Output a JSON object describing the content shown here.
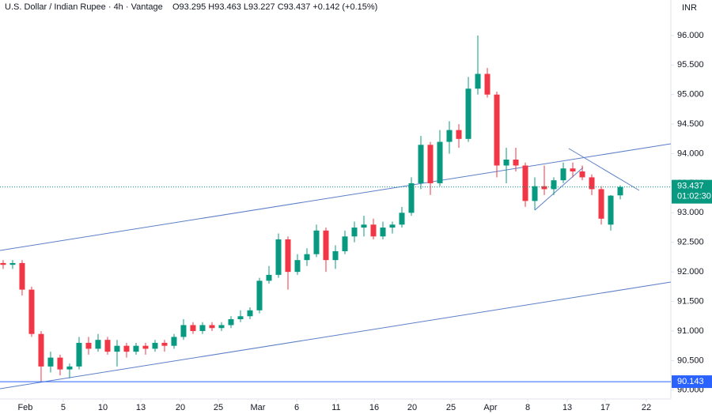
{
  "chart_data": {
    "type": "candlestick",
    "title": "U.S. Dollar / Indian Rupee · 4h · Vantage",
    "subtitle": "O93.295 H93.463 L93.227 C93.437 +0.142 (+0.15%)",
    "currency": "INR",
    "countdown": "01:02:30",
    "up_color": "#089981",
    "down_color": "#f23645",
    "grid": false,
    "series": [
      {
        "open": [
          92.15,
          92.12,
          92.15,
          91.7,
          90.95,
          90.4,
          90.55,
          90.35,
          90.4,
          90.8,
          90.7,
          90.85,
          90.65,
          90.75,
          90.65,
          90.75,
          90.7,
          90.8,
          90.75,
          90.9,
          91.1,
          91.0,
          91.1,
          91.05,
          91.1,
          91.2,
          91.25,
          91.35,
          91.85,
          91.95,
          92.55,
          92.0,
          92.2,
          92.3,
          92.7,
          92.2,
          92.35,
          92.6,
          92.75,
          92.8,
          92.6,
          92.75,
          92.8,
          93.0,
          93.5,
          94.15,
          93.5,
          94.2,
          94.4,
          94.25,
          95.1,
          95.35,
          95.0,
          93.8,
          93.9,
          93.8,
          93.2,
          93.45,
          93.4,
          93.55,
          93.75,
          93.7,
          93.6,
          93.4,
          92.8,
          93.295
        ],
        "high": [
          92.2,
          92.2,
          92.2,
          91.75,
          91.0,
          90.65,
          90.6,
          90.45,
          90.9,
          90.9,
          90.95,
          90.9,
          90.85,
          90.8,
          90.8,
          90.8,
          90.85,
          90.85,
          90.95,
          91.2,
          91.15,
          91.15,
          91.15,
          91.15,
          91.25,
          91.35,
          91.4,
          91.9,
          92.1,
          92.65,
          92.6,
          92.3,
          92.4,
          92.8,
          92.75,
          92.45,
          92.7,
          92.85,
          92.95,
          92.9,
          92.85,
          92.85,
          93.1,
          93.6,
          94.3,
          94.2,
          94.4,
          94.55,
          94.5,
          95.3,
          96.0,
          95.45,
          95.05,
          94.1,
          94.1,
          93.85,
          93.6,
          93.8,
          93.6,
          93.85,
          93.85,
          93.8,
          93.65,
          93.45,
          93.3,
          93.463
        ],
        "low": [
          92.05,
          92.05,
          91.6,
          90.9,
          90.15,
          90.3,
          90.25,
          90.2,
          90.35,
          90.6,
          90.65,
          90.6,
          90.4,
          90.55,
          90.6,
          90.6,
          90.65,
          90.65,
          90.7,
          90.85,
          90.95,
          90.95,
          91.0,
          91.0,
          91.05,
          91.15,
          91.2,
          91.3,
          91.8,
          91.9,
          91.7,
          91.95,
          92.1,
          92.25,
          92.0,
          92.05,
          92.3,
          92.5,
          92.6,
          92.55,
          92.55,
          92.65,
          92.75,
          92.95,
          93.4,
          93.3,
          93.45,
          94.0,
          94.1,
          94.2,
          95.0,
          94.95,
          93.6,
          93.5,
          93.7,
          93.1,
          93.05,
          93.3,
          93.3,
          93.5,
          93.6,
          93.55,
          93.3,
          92.8,
          92.7,
          93.227
        ],
        "close": [
          92.12,
          92.15,
          91.7,
          90.95,
          90.4,
          90.55,
          90.35,
          90.4,
          90.8,
          90.7,
          90.85,
          90.65,
          90.75,
          90.65,
          90.75,
          90.7,
          90.8,
          90.75,
          90.9,
          91.1,
          91.0,
          91.1,
          91.05,
          91.1,
          91.2,
          91.25,
          91.35,
          91.85,
          91.95,
          92.55,
          92.0,
          92.2,
          92.3,
          92.7,
          92.2,
          92.35,
          92.6,
          92.75,
          92.8,
          92.6,
          92.75,
          92.8,
          93.0,
          93.5,
          94.15,
          93.5,
          94.2,
          94.4,
          94.25,
          95.1,
          95.35,
          95.0,
          93.8,
          93.9,
          93.8,
          93.2,
          93.45,
          93.4,
          93.55,
          93.75,
          93.7,
          93.6,
          93.4,
          92.9,
          93.29,
          93.437
        ]
      }
    ],
    "horizontal_line": 90.143,
    "xlim": [
      -0.33,
      70.33
    ],
    "xticks": [
      {
        "value": 2.33,
        "label": "Feb"
      },
      {
        "value": 6.33,
        "label": "5"
      },
      {
        "value": 10.5,
        "label": "10"
      },
      {
        "value": 14.5,
        "label": "13"
      },
      {
        "value": 18.67,
        "label": "20"
      },
      {
        "value": 22.67,
        "label": "25"
      },
      {
        "value": 26.83,
        "label": "Mar"
      },
      {
        "value": 30.92,
        "label": "6"
      },
      {
        "value": 35.08,
        "label": "11"
      },
      {
        "value": 39.08,
        "label": "16"
      },
      {
        "value": 43.08,
        "label": "20"
      },
      {
        "value": 47.17,
        "label": "25"
      },
      {
        "value": 51.33,
        "label": "Apr"
      },
      {
        "value": 55.25,
        "label": "8"
      },
      {
        "value": 59.42,
        "label": "13"
      },
      {
        "value": 63.42,
        "label": "17"
      },
      {
        "value": 67.75,
        "label": "22"
      }
    ],
    "ylim": [
      89.85,
      96.6
    ],
    "yticks": [
      {
        "value": 90,
        "label": "90.000"
      },
      {
        "value": 90.5,
        "label": "90.500"
      },
      {
        "value": 91,
        "label": "91.000"
      },
      {
        "value": 91.5,
        "label": "91.500"
      },
      {
        "value": 92,
        "label": "92.000"
      },
      {
        "value": 92.5,
        "label": "92.500"
      },
      {
        "value": 93,
        "label": "93.000"
      },
      {
        "value": 93.5,
        "label": "93.500"
      },
      {
        "value": 94,
        "label": "94.000"
      },
      {
        "value": 94.5,
        "label": "94.500"
      },
      {
        "value": 95,
        "label": "95.000"
      },
      {
        "value": 95.5,
        "label": "95.500"
      },
      {
        "value": 96,
        "label": "96.000"
      }
    ]
  }
}
